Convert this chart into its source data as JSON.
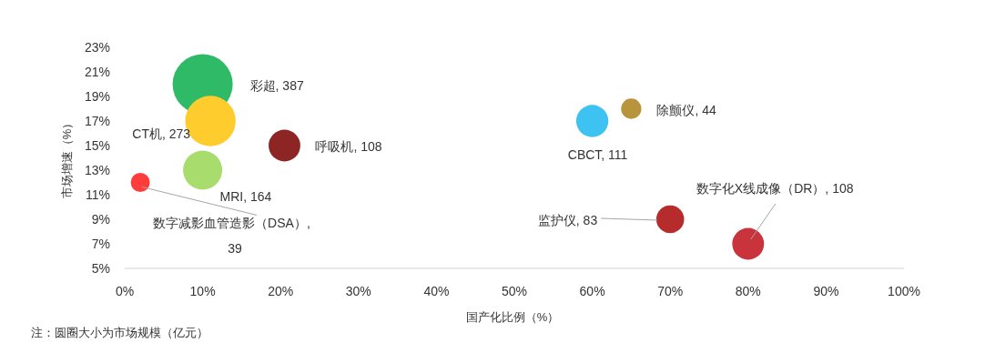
{
  "chart_data": {
    "type": "bubble",
    "xlabel": "国产化比例（%）",
    "ylabel": "市场增速（%）",
    "x": [
      10,
      11,
      20.5,
      10,
      2,
      60,
      65,
      70,
      80
    ],
    "values": [
      20,
      17,
      15,
      13,
      12,
      17,
      18,
      9,
      7
    ],
    "sizes": [
      387,
      273,
      108,
      164,
      39,
      111,
      44,
      83,
      108
    ],
    "colors": [
      "#2fba68",
      "#ffcc2e",
      "#8e2525",
      "#a8dc6c",
      "#ff3c3c",
      "#3ec2f2",
      "#b8943c",
      "#b62c2c",
      "#c9333b"
    ],
    "value_labels": [
      "彩超, 387",
      "CT机, 273",
      "呼吸机, 108",
      "MRI, 164",
      "数字减影血管造影（DSA）, 39",
      "CBCT, 111",
      "除颤仪, 44",
      "监护仪, 83",
      "数字化X线成像（DR）, 108"
    ],
    "xlim": [
      0,
      100
    ],
    "ylim": [
      5,
      23
    ],
    "xticks": [
      {
        "value": 0,
        "label": "0%"
      },
      {
        "value": 10,
        "label": "10%"
      },
      {
        "value": 20,
        "label": "20%"
      },
      {
        "value": 30,
        "label": "30%"
      },
      {
        "value": 40,
        "label": "40%"
      },
      {
        "value": 50,
        "label": "50%"
      },
      {
        "value": 60,
        "label": "60%"
      },
      {
        "value": 70,
        "label": "70%"
      },
      {
        "value": 80,
        "label": "80%"
      },
      {
        "value": 90,
        "label": "90%"
      },
      {
        "value": 100,
        "label": "100%"
      }
    ],
    "yticks": [
      {
        "value": 5,
        "label": "5%"
      },
      {
        "value": 7,
        "label": "7%"
      },
      {
        "value": 9,
        "label": "9%"
      },
      {
        "value": 11,
        "label": "11%"
      },
      {
        "value": 13,
        "label": "13%"
      },
      {
        "value": 15,
        "label": "15%"
      },
      {
        "value": 17,
        "label": "17%"
      },
      {
        "value": 19,
        "label": "19%"
      },
      {
        "value": 21,
        "label": "21%"
      },
      {
        "value": 23,
        "label": "23%"
      }
    ],
    "annotations": [
      "注：圆圈大小为市场规模（亿元）"
    ]
  }
}
